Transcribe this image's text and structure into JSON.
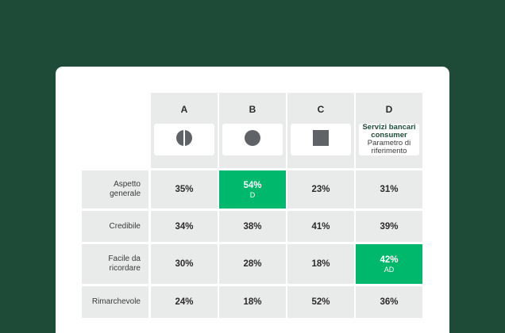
{
  "columns": [
    {
      "letter": "A",
      "logo": "half-circle-icon"
    },
    {
      "letter": "B",
      "logo": "circle-icon"
    },
    {
      "letter": "C",
      "logo": "square-icon"
    },
    {
      "letter": "D",
      "logo": "reference-text",
      "ref_title": "Servizi bancari consumer",
      "ref_subtitle": "Parametro di riferimento"
    }
  ],
  "rows": [
    {
      "label": "Aspetto generale",
      "cells": [
        {
          "value": "35%",
          "sig": ""
        },
        {
          "value": "54%",
          "sig": "D",
          "highlight": true
        },
        {
          "value": "23%",
          "sig": ""
        },
        {
          "value": "31%",
          "sig": ""
        }
      ]
    },
    {
      "label": "Credibile",
      "cells": [
        {
          "value": "34%",
          "sig": ""
        },
        {
          "value": "38%",
          "sig": ""
        },
        {
          "value": "41%",
          "sig": ""
        },
        {
          "value": "39%",
          "sig": ""
        }
      ]
    },
    {
      "label": "Facile da ricordare",
      "cells": [
        {
          "value": "30%",
          "sig": ""
        },
        {
          "value": "28%",
          "sig": ""
        },
        {
          "value": "18%",
          "sig": ""
        },
        {
          "value": "42%",
          "sig": "AD",
          "highlight": true
        }
      ]
    },
    {
      "label": "Rimarchevole",
      "cells": [
        {
          "value": "24%",
          "sig": ""
        },
        {
          "value": "18%",
          "sig": ""
        },
        {
          "value": "52%",
          "sig": ""
        },
        {
          "value": "36%",
          "sig": ""
        }
      ]
    }
  ],
  "colors": {
    "background": "#1e4a38",
    "highlight": "#00b86b",
    "cell": "#e9eaea",
    "logo": "#5f6368"
  }
}
